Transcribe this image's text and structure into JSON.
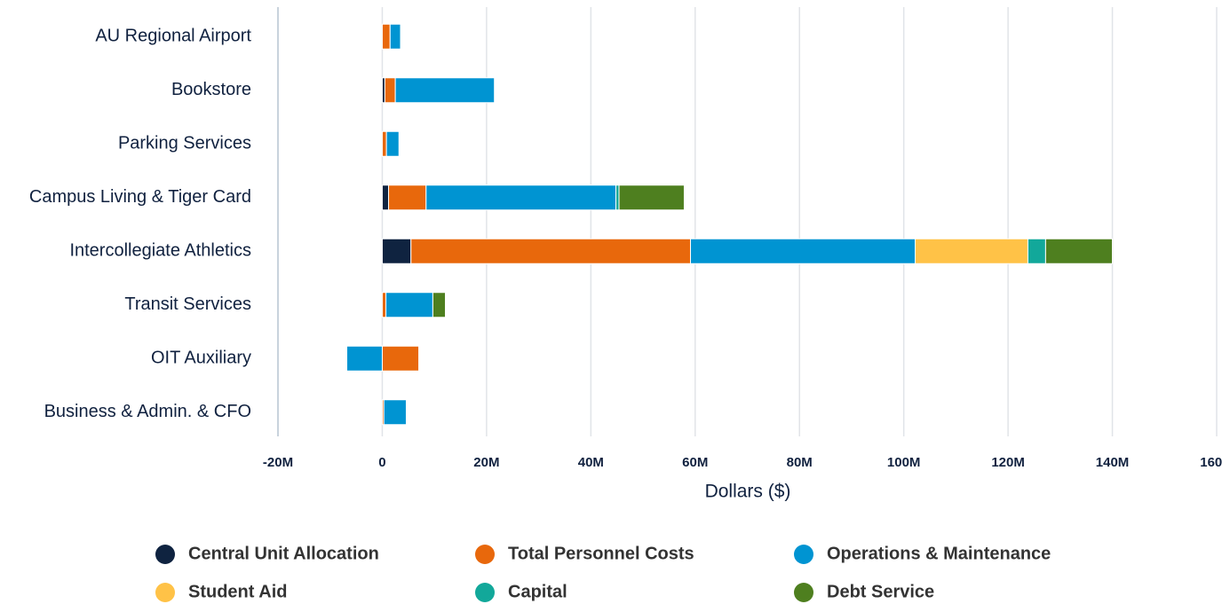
{
  "chart_data": {
    "type": "stacked-bar-horizontal",
    "categories": [
      "AU Regional Airport",
      "Bookstore",
      "Parking Services",
      "Campus Living & Tiger Card",
      "Intercollegiate Athletics",
      "Transit Services",
      "OIT Auxiliary",
      "Business & Admin. & CFO"
    ],
    "series": [
      {
        "name": "Central Unit Allocation",
        "color": "#0f2340",
        "values": [
          0,
          500000,
          0,
          1200000,
          5500000,
          0,
          0,
          0
        ]
      },
      {
        "name": "Total Personnel Costs",
        "color": "#e8680c",
        "values": [
          1500000,
          2000000,
          800000,
          7200000,
          53600000,
          700000,
          7000000,
          300000
        ]
      },
      {
        "name": "Operations & Maintenance",
        "color": "#0094d2",
        "values": [
          2000000,
          19000000,
          2400000,
          36400000,
          43100000,
          9000000,
          -6800000,
          4300000
        ]
      },
      {
        "name": "Student Aid",
        "color": "#ffc247",
        "values": [
          0,
          0,
          0,
          0,
          21600000,
          0,
          0,
          0
        ]
      },
      {
        "name": "Capital",
        "color": "#12a89a",
        "values": [
          0,
          0,
          0,
          600000,
          3400000,
          0,
          0,
          0
        ]
      },
      {
        "name": "Debt Service",
        "color": "#4e7f1f",
        "values": [
          0,
          0,
          0,
          12500000,
          12800000,
          2400000,
          0,
          0
        ]
      }
    ],
    "xlabel": "Dollars ($)",
    "xlim": [
      -20000000,
      160000000
    ],
    "xticks": [
      {
        "value": -20000000,
        "label": "-20M"
      },
      0,
      {
        "value": 20000000,
        "label": "20M"
      },
      {
        "value": 40000000,
        "label": "40M"
      },
      {
        "value": 60000000,
        "label": "60M"
      },
      {
        "value": 80000000,
        "label": "80M"
      },
      {
        "value": 100000000,
        "label": "100M"
      },
      {
        "value": 120000000,
        "label": "120M"
      },
      {
        "value": 140000000,
        "label": "140M"
      },
      {
        "value": 160000000,
        "label": "160M"
      }
    ],
    "grid": true,
    "legend": "bottom"
  }
}
